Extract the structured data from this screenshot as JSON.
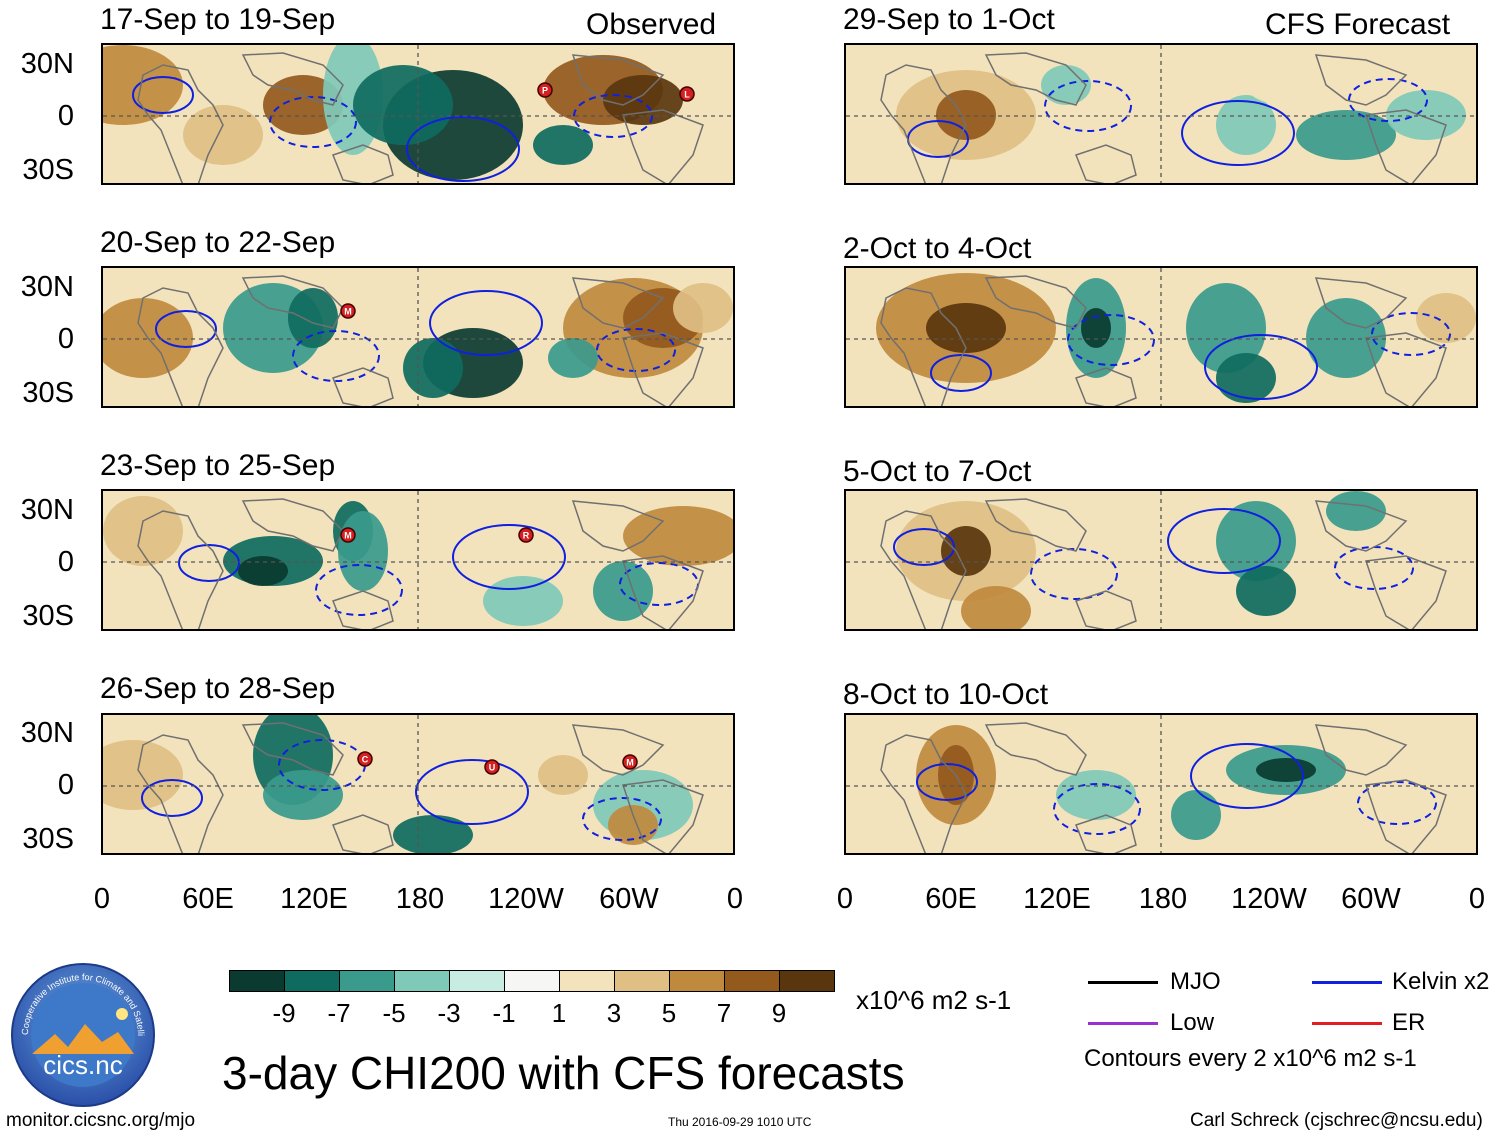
{
  "columns": {
    "observed_label": "Observed",
    "forecast_label": "CFS Forecast"
  },
  "panels": {
    "observed": [
      {
        "title": "17-Sep to 19-Sep",
        "storms": [
          "P",
          "L"
        ]
      },
      {
        "title": "20-Sep to 22-Sep",
        "storms": [
          "M"
        ]
      },
      {
        "title": "23-Sep to 25-Sep",
        "storms": [
          "M",
          "R"
        ]
      },
      {
        "title": "26-Sep to 28-Sep",
        "storms": [
          "C",
          "U",
          "M"
        ]
      }
    ],
    "forecast": [
      {
        "title": "29-Sep to 1-Oct"
      },
      {
        "title": "2-Oct to 4-Oct"
      },
      {
        "title": "5-Oct to 7-Oct"
      },
      {
        "title": "8-Oct to 10-Oct"
      }
    ]
  },
  "axes": {
    "lat_labels": [
      "30N",
      "0",
      "30S"
    ],
    "lon_labels": [
      "0",
      "60E",
      "120E",
      "180",
      "120W",
      "60W",
      "0"
    ]
  },
  "colorbar": {
    "labels": [
      "-9",
      "-7",
      "-5",
      "-3",
      "-1",
      "1",
      "3",
      "5",
      "7",
      "9"
    ],
    "units": "x10^6 m2 s-1",
    "colors": [
      "#0b3b30",
      "#0f6b5f",
      "#3a9a8c",
      "#7fc9b8",
      "#c8ebe2",
      "#f6f6f4",
      "#f3e3bd",
      "#dfbf84",
      "#c08a3e",
      "#93591d",
      "#5a360e"
    ]
  },
  "legend": {
    "mjo": "MJO",
    "kelvin": "Kelvin x2",
    "low": "Low",
    "er": "ER",
    "contours_note": "Contours every 2 x10^6 m2 s-1",
    "colors": {
      "mjo": "#000000",
      "kelvin": "#1020e0",
      "low": "#9b30d0",
      "er": "#e02020"
    }
  },
  "main_title": "3-day CHI200 with CFS forecasts",
  "logo_text": "cics.nc",
  "logo_ring_text": "Cooperative Institute for Climate and Satellites",
  "footer": {
    "url": "monitor.cicsnc.org/mjo",
    "timestamp": "Thu 2016-09-29 1010 UTC",
    "credit": "Carl Schreck (cjschrec@ncsu.edu)"
  }
}
